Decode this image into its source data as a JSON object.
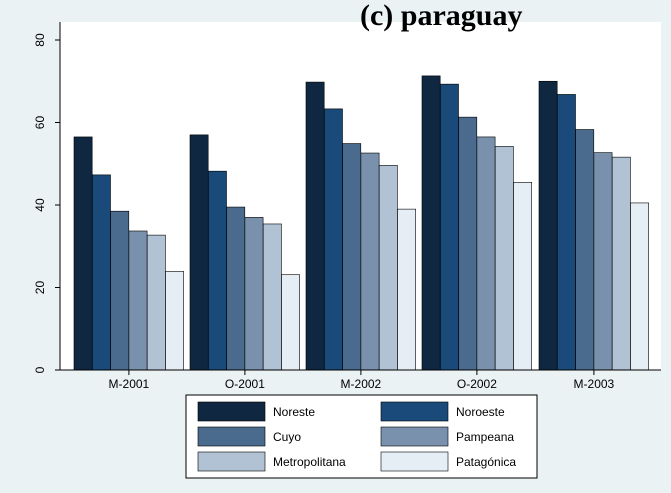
{
  "chart_data": {
    "type": "bar",
    "title": "(c) paraguay",
    "categories": [
      "M-2001",
      "O-2001",
      "M-2002",
      "O-2002",
      "M-2003"
    ],
    "series": [
      {
        "name": "Noreste",
        "values": [
          56.5,
          57.0,
          69.8,
          71.3,
          70.0
        ],
        "color": "#0f2740"
      },
      {
        "name": "Noroeste",
        "values": [
          47.3,
          48.2,
          63.3,
          69.3,
          66.8
        ],
        "color": "#1a4a7a"
      },
      {
        "name": "Cuyo",
        "values": [
          38.5,
          39.5,
          54.9,
          61.3,
          58.3
        ],
        "color": "#4a6b8e"
      },
      {
        "name": "Pampeana",
        "values": [
          33.7,
          37.0,
          52.6,
          56.5,
          52.7
        ],
        "color": "#7991ad"
      },
      {
        "name": "Metropolitana",
        "values": [
          32.7,
          35.4,
          49.6,
          54.2,
          51.6
        ],
        "color": "#b0c2d3"
      },
      {
        "name": "Patagónica",
        "values": [
          23.9,
          23.1,
          39.0,
          45.5,
          40.5
        ],
        "color": "#e6eef5"
      }
    ],
    "xlabel": "",
    "ylabel": "",
    "ylim": [
      0,
      80
    ],
    "yticks": [
      0,
      20,
      40,
      60,
      80
    ],
    "grid": false,
    "legend": "bottom"
  }
}
